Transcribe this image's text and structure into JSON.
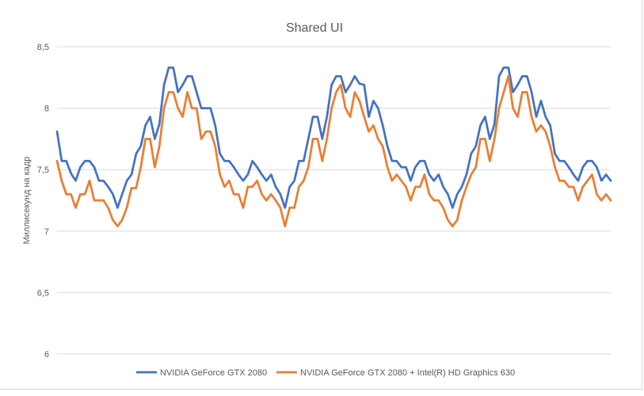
{
  "chart_data": {
    "type": "line",
    "title": "Shared UI",
    "xlabel": "",
    "ylabel": "Миллисекунд на кадр",
    "ylim": [
      6,
      8.5
    ],
    "yticks": [
      6,
      6.5,
      7,
      7.5,
      8,
      8.5
    ],
    "ytick_labels": [
      "6",
      "6,5",
      "7",
      "7,5",
      "8",
      "8,5"
    ],
    "grid": true,
    "legend_position": "bottom",
    "colors": {
      "series1": "#4472C4",
      "series2": "#ED7D31",
      "grid": "#d9d9d9",
      "text": "#595959"
    },
    "series": [
      {
        "name": "NVIDIA GeForce GTX 2080",
        "values": [
          7.81,
          7.57,
          7.57,
          7.47,
          7.41,
          7.52,
          7.57,
          7.57,
          7.52,
          7.41,
          7.41,
          7.36,
          7.3,
          7.19,
          7.3,
          7.41,
          7.46,
          7.63,
          7.69,
          7.86,
          7.93,
          7.75,
          7.87,
          8.19,
          8.33,
          8.33,
          8.13,
          8.19,
          8.26,
          8.26,
          8.13,
          8.0,
          8.0,
          8.0,
          7.86,
          7.63,
          7.57,
          7.57,
          7.52,
          7.46,
          7.41,
          7.46,
          7.57,
          7.52,
          7.46,
          7.41,
          7.46,
          7.36,
          7.3,
          7.19,
          7.36,
          7.41,
          7.57,
          7.57,
          7.75,
          7.93,
          7.93,
          7.75,
          7.93,
          8.19,
          8.26,
          8.26,
          8.13,
          8.19,
          8.26,
          8.2,
          8.19,
          7.93,
          8.06,
          8.0,
          7.86,
          7.69,
          7.57,
          7.57,
          7.52,
          7.52,
          7.41,
          7.52,
          7.57,
          7.57,
          7.46,
          7.41,
          7.46,
          7.36,
          7.3,
          7.19,
          7.3,
          7.36,
          7.46,
          7.63,
          7.69,
          7.86,
          7.93,
          7.75,
          7.87,
          8.26,
          8.33,
          8.33,
          8.13,
          8.19,
          8.26,
          8.26,
          8.13,
          7.93,
          8.06,
          7.93,
          7.86,
          7.63,
          7.57,
          7.57,
          7.52,
          7.46,
          7.41,
          7.52,
          7.57,
          7.57,
          7.52,
          7.41,
          7.46,
          7.41
        ]
      },
      {
        "name": "NVIDIA GeForce GTX 2080 + Intel(R) HD Graphics 630",
        "values": [
          7.57,
          7.41,
          7.3,
          7.3,
          7.19,
          7.3,
          7.3,
          7.41,
          7.25,
          7.25,
          7.25,
          7.19,
          7.09,
          7.04,
          7.09,
          7.19,
          7.35,
          7.35,
          7.52,
          7.75,
          7.75,
          7.52,
          7.69,
          8.0,
          8.13,
          8.13,
          8.0,
          7.93,
          8.13,
          8.0,
          8.0,
          7.75,
          7.81,
          7.81,
          7.69,
          7.46,
          7.36,
          7.41,
          7.3,
          7.3,
          7.19,
          7.36,
          7.36,
          7.41,
          7.3,
          7.25,
          7.3,
          7.25,
          7.19,
          7.04,
          7.19,
          7.19,
          7.36,
          7.41,
          7.52,
          7.75,
          7.75,
          7.57,
          7.75,
          8.0,
          8.13,
          8.19,
          8.0,
          7.93,
          8.13,
          8.06,
          7.93,
          7.81,
          7.86,
          7.75,
          7.69,
          7.52,
          7.41,
          7.46,
          7.41,
          7.36,
          7.25,
          7.36,
          7.36,
          7.46,
          7.3,
          7.25,
          7.25,
          7.19,
          7.09,
          7.04,
          7.09,
          7.25,
          7.36,
          7.46,
          7.52,
          7.75,
          7.75,
          7.57,
          7.75,
          8.0,
          8.13,
          8.26,
          8.0,
          7.93,
          8.13,
          8.13,
          7.93,
          7.81,
          7.86,
          7.81,
          7.69,
          7.52,
          7.41,
          7.41,
          7.36,
          7.36,
          7.25,
          7.36,
          7.41,
          7.46,
          7.3,
          7.25,
          7.3,
          7.25
        ]
      }
    ]
  }
}
